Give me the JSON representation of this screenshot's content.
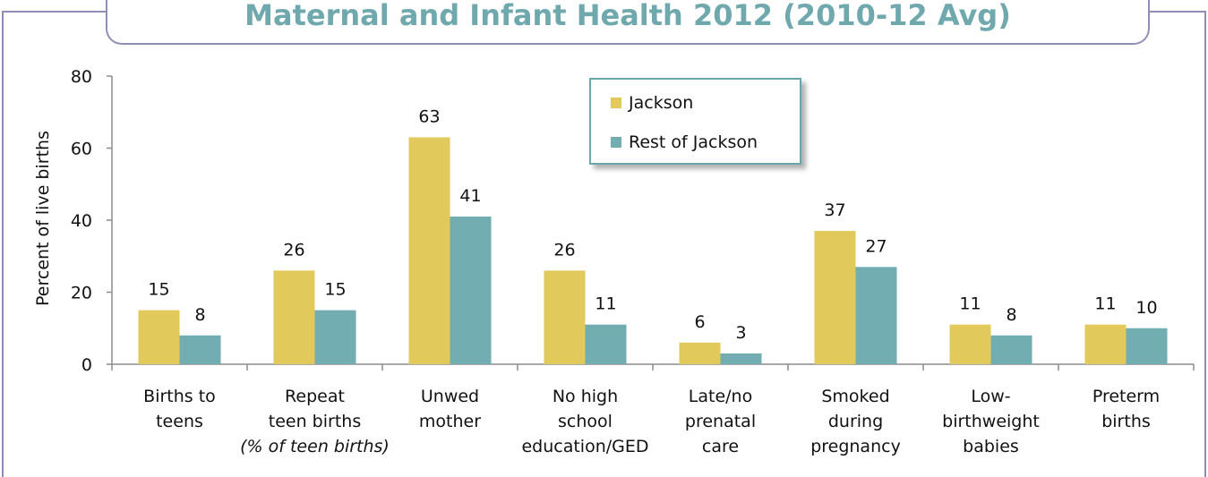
{
  "chart_data": {
    "type": "bar",
    "title": "Maternal and Infant Health 2012 (2010-12 Avg)",
    "ylabel": "Percent of live births",
    "ylim": [
      0,
      80
    ],
    "yticks": [
      "0",
      "20",
      "40",
      "60",
      "80"
    ],
    "categories": [
      {
        "lines": [
          "Births to",
          "teens"
        ],
        "note": ""
      },
      {
        "lines": [
          "Repeat",
          "teen births"
        ],
        "note": "(% of teen births)"
      },
      {
        "lines": [
          "Unwed",
          "mother"
        ],
        "note": ""
      },
      {
        "lines": [
          "No high",
          "school",
          "education/GED"
        ],
        "note": ""
      },
      {
        "lines": [
          "Late/no",
          "prenatal",
          "care"
        ],
        "note": ""
      },
      {
        "lines": [
          "Smoked",
          "during",
          "pregnancy"
        ],
        "note": ""
      },
      {
        "lines": [
          "Low-",
          "birthweight",
          "babies"
        ],
        "note": ""
      },
      {
        "lines": [
          "Preterm",
          "births"
        ],
        "note": ""
      }
    ],
    "series": [
      {
        "name": "Jackson",
        "color": "#e2c95c",
        "values": [
          15,
          26,
          63,
          26,
          6,
          37,
          11,
          11
        ]
      },
      {
        "name": "Rest of Jackson",
        "color": "#72adb1",
        "values": [
          8,
          15,
          41,
          11,
          3,
          27,
          8,
          10
        ]
      }
    ],
    "grid": false,
    "legend_position": "top-center"
  }
}
